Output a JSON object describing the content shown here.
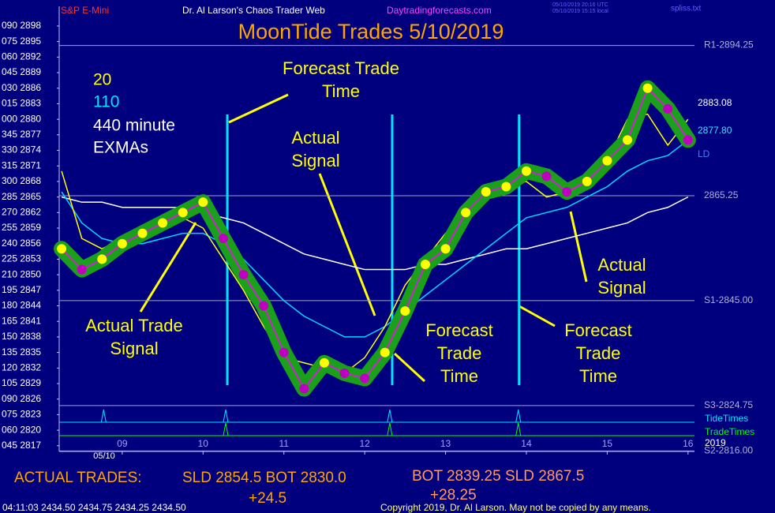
{
  "chart_data": {
    "type": "line",
    "title": "MoonTide Trades 5/10/2019",
    "header": {
      "left": "S&P E-Mini",
      "center": "Dr. Al Larson's Chaos Trader Web",
      "site": "Daytradingforecasts.com",
      "stamp_utc": "05/10/2019 20:16 UTC",
      "stamp_local": "05/10/2019 15:15 local",
      "file": "spliss.txt"
    },
    "legend_text": [
      {
        "text": "20",
        "color": "#ffff00"
      },
      {
        "text": "110",
        "color": "#00e5ff"
      },
      {
        "text": "440 minute",
        "color": "#ffffff"
      },
      {
        "text": "EXMAs",
        "color": "#ffffff"
      }
    ],
    "x": [
      8.25,
      8.5,
      8.75,
      9.0,
      9.25,
      9.5,
      9.75,
      10.0,
      10.25,
      10.5,
      10.75,
      11.0,
      11.25,
      11.5,
      11.75,
      12.0,
      12.25,
      12.5,
      12.75,
      13.0,
      13.25,
      13.5,
      13.75,
      14.0,
      14.25,
      14.5,
      14.75,
      15.0,
      15.25,
      15.5,
      15.75,
      16.0
    ],
    "series": [
      {
        "name": "Price",
        "color": "#d020d0",
        "glow_color": "#1aa01a",
        "up_color": "#ffff00",
        "down_color": "#c000c0",
        "values": [
          2855,
          2851,
          2853,
          2856,
          2858,
          2860,
          2862,
          2864,
          2857,
          2850,
          2844,
          2835,
          2828,
          2833,
          2831,
          2830,
          2835,
          2843,
          2852,
          2855,
          2862,
          2866,
          2867,
          2870,
          2869,
          2866,
          2868,
          2872,
          2876,
          2886,
          2882,
          2876
        ]
      },
      {
        "name": "20",
        "color": "#ffff00",
        "values": [
          2870,
          2857,
          2855,
          2857,
          2858,
          2860,
          2861,
          2859,
          2853,
          2847,
          2840,
          2834,
          2833,
          2832,
          2831,
          2834,
          2840,
          2848,
          2853,
          2858,
          2862,
          2865,
          2867,
          2868,
          2865,
          2866,
          2869,
          2872,
          2880,
          2881,
          2875,
          2880
        ]
      },
      {
        "name": "110",
        "color": "#00d8ff",
        "values": [
          2866,
          2860,
          2857,
          2856,
          2856,
          2857,
          2858,
          2858,
          2856,
          2853,
          2849,
          2845,
          2842,
          2840,
          2838,
          2838,
          2840,
          2843,
          2846,
          2849,
          2852,
          2855,
          2858,
          2861,
          2862,
          2863,
          2865,
          2867,
          2870,
          2872,
          2873,
          2876
        ]
      },
      {
        "name": "440",
        "color": "#ffffff",
        "values": [
          2865,
          2864,
          2864,
          2863,
          2863,
          2863,
          2863,
          2862,
          2861,
          2860,
          2858,
          2856,
          2854,
          2853,
          2852,
          2851,
          2851,
          2851,
          2852,
          2852,
          2853,
          2854,
          2855,
          2855,
          2856,
          2857,
          2858,
          2859,
          2860,
          2862,
          2863,
          2865
        ]
      }
    ],
    "xlim": [
      8.22,
      16.08
    ],
    "xticks": [
      {
        "value": 9,
        "label": "09"
      },
      10,
      11,
      12,
      13,
      14,
      15,
      16
    ],
    "date_label": "05/10",
    "ylim": [
      2815.9,
      2901.8
    ],
    "yticks": [
      {
        "value": 2898,
        "label": "090 2898"
      },
      {
        "value": 2895,
        "label": "075 2895"
      },
      {
        "value": 2892,
        "label": "060 2892"
      },
      {
        "value": 2889,
        "label": "045 2889"
      },
      {
        "value": 2886,
        "label": "030 2886"
      },
      {
        "value": 2883,
        "label": "015 2883"
      },
      {
        "value": 2880,
        "label": "000 2880"
      },
      {
        "value": 2877,
        "label": "345 2877"
      },
      {
        "value": 2874,
        "label": "330 2874"
      },
      {
        "value": 2871,
        "label": "315 2871"
      },
      {
        "value": 2868,
        "label": "300 2868"
      },
      {
        "value": 2865,
        "label": "285 2865"
      },
      {
        "value": 2862,
        "label": "270 2862"
      },
      {
        "value": 2859,
        "label": "255 2859"
      },
      {
        "value": 2856,
        "label": "240 2856"
      },
      {
        "value": 2853,
        "label": "225 2853"
      },
      {
        "value": 2850,
        "label": "210 2850"
      },
      {
        "value": 2847,
        "label": "195 2847"
      },
      {
        "value": 2844,
        "label": "180 2844"
      },
      {
        "value": 2841,
        "label": "165 2841"
      },
      {
        "value": 2838,
        "label": "150 2838"
      },
      {
        "value": 2835,
        "label": "135 2835"
      },
      {
        "value": 2832,
        "label": "120 2832"
      },
      {
        "value": 2829,
        "label": "105 2829"
      },
      {
        "value": 2826,
        "label": "090 2826"
      },
      {
        "value": 2823,
        "label": "075 2823"
      },
      {
        "value": 2820,
        "label": "060 2820"
      },
      {
        "value": 2817,
        "label": "045 2817"
      }
    ],
    "levels": [
      {
        "label": "R1-2894.25",
        "value": 2894.25
      },
      {
        "label": "2865.25",
        "value": 2865.25
      },
      {
        "label": "S1-2845.00",
        "value": 2845.0
      },
      {
        "label": "S3-2824.75",
        "value": 2824.75
      },
      {
        "label": "S2-2816.00",
        "value": 2816.0
      }
    ],
    "right_labels": [
      {
        "text": "2883.08",
        "color": "#ffffff"
      },
      {
        "text": "2877.80",
        "color": "#40e0ff"
      },
      {
        "text": "LD",
        "color": "#4080ff"
      }
    ],
    "tide_times": {
      "name": "TideTimes",
      "color": "#00e5ff",
      "x": [
        8.77,
        10.28,
        12.31,
        13.9
      ]
    },
    "trade_times": {
      "name": "TradeTimes",
      "color": "#00ff00",
      "x": [
        10.28,
        12.31,
        13.9
      ]
    },
    "year_label": "2019",
    "forecast_lines": {
      "color": "#00e5ff",
      "x": [
        10.3,
        12.34,
        13.91
      ]
    },
    "annotations": [
      {
        "lines": [
          "Forecast Trade",
          "Time"
        ]
      },
      {
        "lines": [
          "Actual",
          "Signal"
        ]
      },
      {
        "lines": [
          "Actual Trade",
          "Signal"
        ]
      },
      {
        "lines": [
          "Forecast",
          "Trade",
          "Time"
        ]
      },
      {
        "lines": [
          "Forecast",
          "Trade",
          "Time"
        ]
      },
      {
        "lines": [
          "Actual",
          "Signal"
        ]
      }
    ],
    "trades": {
      "label": "ACTUAL TRADES:",
      "trade1": "SLD 2854.5 BOT 2830.0",
      "result1": "+24.5",
      "trade2": "BOT  2839.25 SLD  2867.5",
      "result2": "+28.25"
    },
    "status": "04:11:03  2434.50 2434.75 2434.25 2434.50",
    "copyright": "Copyright 2019, Dr. Al Larson. May not be copied by any means."
  }
}
